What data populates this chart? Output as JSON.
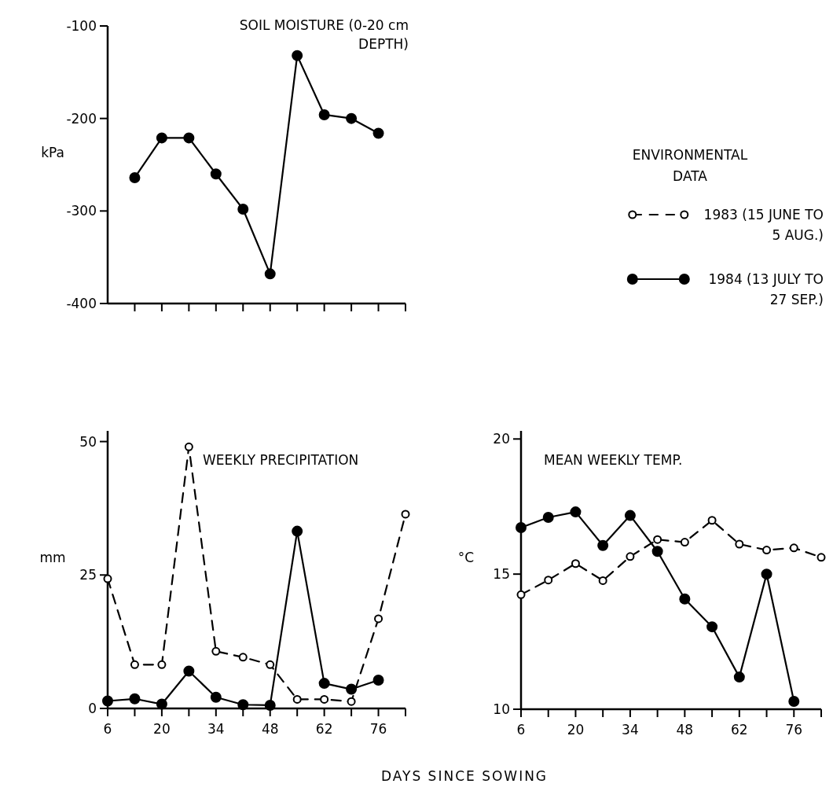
{
  "chart_data": [
    {
      "type": "line",
      "title": "SOIL MOISTURE (0-20 cm DEPTH)",
      "ylabel": "kPa",
      "xlim": [
        6,
        83
      ],
      "ylim": [
        -400,
        -100
      ],
      "yticks": [
        -400,
        -300,
        -200,
        -100
      ],
      "xticks": [
        {
          "value": 13,
          "label": null
        },
        {
          "value": 20,
          "label": null
        },
        {
          "value": 27,
          "label": null
        },
        {
          "value": 34,
          "label": null
        },
        {
          "value": 41,
          "label": null
        },
        {
          "value": 48,
          "label": null
        },
        {
          "value": 55,
          "label": null
        },
        {
          "value": 62,
          "label": null
        },
        {
          "value": 69,
          "label": null
        },
        {
          "value": 76,
          "label": null
        },
        {
          "value": 83,
          "label": null
        }
      ],
      "tick_labels": "y",
      "series": [
        {
          "color": "#000000",
          "marker": "circle",
          "line_style": "solid",
          "x": [
            13,
            20,
            27,
            34,
            41,
            48,
            55,
            62,
            69,
            76
          ],
          "values": [
            -264,
            -221,
            -221,
            -260,
            -298,
            -368,
            -132,
            -196,
            -200,
            -216
          ]
        }
      ]
    },
    {
      "type": "line",
      "title": "WEEKLY PRECIPITATION",
      "ylabel": "mm",
      "xlabel": "DAYS SINCE SOWING",
      "xlim": [
        6,
        83
      ],
      "ylim": [
        0,
        52
      ],
      "yticks": [
        0,
        25,
        50
      ],
      "xticks": [
        6,
        {
          "value": 13,
          "label": null
        },
        20,
        {
          "value": 27,
          "label": null
        },
        34,
        {
          "value": 41,
          "label": null
        },
        48,
        {
          "value": 55,
          "label": null
        },
        62,
        {
          "value": 69,
          "label": null
        },
        76,
        {
          "value": 83,
          "label": null
        }
      ],
      "series": [
        {
          "color": "#000000",
          "marker": "circle",
          "line_style": "dashed",
          "x": [
            6,
            13,
            20,
            27,
            34,
            41,
            48,
            55,
            62,
            69,
            76,
            83
          ],
          "values": [
            24.3,
            8.2,
            8.2,
            49,
            10.7,
            9.6,
            8.2,
            1.7,
            1.7,
            1.3,
            16.8,
            36.4
          ]
        },
        {
          "color": "#000000",
          "marker": "circle",
          "line_style": "solid",
          "x": [
            6,
            13,
            20,
            27,
            34,
            41,
            48,
            55,
            62,
            69,
            76
          ],
          "values": [
            1.4,
            1.8,
            0.8,
            7,
            2.1,
            0.7,
            0.6,
            33.2,
            4.7,
            3.6,
            5.3
          ]
        }
      ]
    },
    {
      "type": "line",
      "title": "MEAN WEEKLY TEMP.",
      "ylabel": "°C",
      "legend_title": "ENVIRONMENTAL DATA",
      "legend": "top",
      "xlim": [
        6,
        83
      ],
      "ylim": [
        10,
        20.3
      ],
      "yticks": [
        10,
        15,
        20
      ],
      "xticks": [
        6,
        {
          "value": 13,
          "label": null
        },
        20,
        {
          "value": 27,
          "label": null
        },
        34,
        {
          "value": 41,
          "label": null
        },
        48,
        {
          "value": 55,
          "label": null
        },
        62,
        {
          "value": 69,
          "label": null
        },
        76,
        {
          "value": 83,
          "label": null
        }
      ],
      "series": [
        {
          "name": "1983 (15 JUNE TO 5 AUG.)",
          "color": "#000000",
          "marker": "circle",
          "line_style": "dashed",
          "x": [
            6,
            13,
            20,
            27,
            34,
            41,
            48,
            55,
            62,
            69,
            76,
            83
          ],
          "values": [
            14.24,
            14.78,
            15.39,
            14.76,
            15.65,
            16.28,
            16.18,
            16.99,
            16.11,
            15.89,
            15.97,
            15.62
          ]
        },
        {
          "name": "1984 (13 JULY TO 27 SEP.)",
          "color": "#000000",
          "marker": "circle",
          "line_style": "solid",
          "x": [
            6,
            13,
            20,
            27,
            34,
            41,
            48,
            55,
            62,
            69,
            76
          ],
          "values": [
            16.72,
            17.1,
            17.3,
            16.06,
            17.17,
            15.84,
            14.08,
            13.05,
            11.19,
            15,
            10.29
          ]
        }
      ]
    }
  ]
}
